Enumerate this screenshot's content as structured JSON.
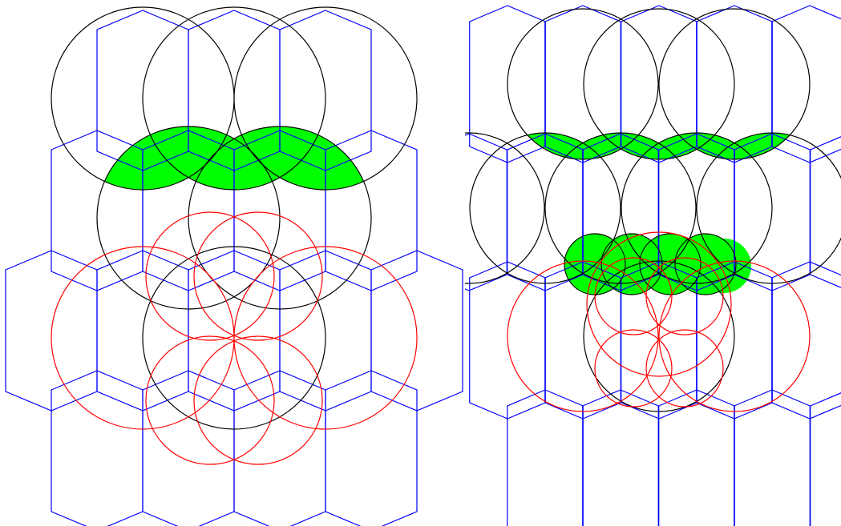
{
  "colors": {
    "background": "#ffffff",
    "hexagon_stroke": "#0000ff",
    "black_circle_stroke": "#000000",
    "red_circle_stroke": "#ff0000",
    "lens_fill": "#00ff00"
  },
  "panels": [
    {
      "id": "left",
      "description_visible": false
    },
    {
      "id": "right",
      "description_visible": false
    }
  ]
}
